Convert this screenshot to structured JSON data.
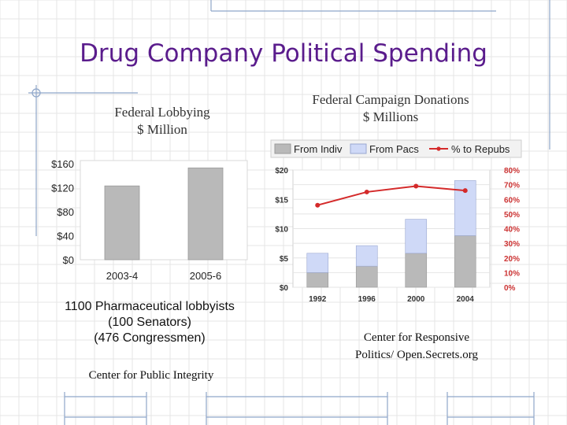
{
  "slide": {
    "title": "Drug Company Political Spending",
    "lobbying_heading": [
      "Federal Lobbying",
      "$ Million"
    ],
    "donations_heading": [
      "Federal Campaign Donations",
      "$ Millions"
    ],
    "lobbyists_note": [
      "1100 Pharmaceutical lobbyists",
      "(100 Senators)",
      "(476 Congressmen)"
    ],
    "source_left": "Center for Public Integrity",
    "source_right": [
      "Center for Responsive",
      "Politics/ Open.Secrets.org"
    ],
    "colors": {
      "title": "#5a1c8c",
      "bar_gray": "#b9b9b9",
      "bar_pacs": "#cfd9f7",
      "line_red": "#d42a2a",
      "axis_red": "#cc3333",
      "decor_blue": "#8fa6c9"
    }
  },
  "chart_data": [
    {
      "type": "bar",
      "title": "",
      "categories": [
        "2003-4",
        "2005-6"
      ],
      "values": [
        123,
        153
      ],
      "ylim": [
        0,
        160
      ],
      "yticks": [
        0,
        40,
        80,
        120,
        160
      ],
      "ytick_labels": [
        "$0",
        "$40",
        "$80",
        "$120",
        "$160"
      ],
      "grid": false
    },
    {
      "type": "bar",
      "stacked": true,
      "categories": [
        "1992",
        "1996",
        "2000",
        "2004"
      ],
      "series": [
        {
          "name": "From Indiv",
          "values": [
            2.5,
            3.6,
            5.8,
            8.8
          ]
        },
        {
          "name": "From Pacs",
          "values": [
            3.3,
            3.5,
            5.8,
            9.4
          ]
        }
      ],
      "line_series": {
        "name": "% to Repubs",
        "axis": "right",
        "values": [
          56,
          65,
          69,
          66
        ]
      },
      "ylim": [
        0,
        20
      ],
      "yticks": [
        0,
        5,
        10,
        15,
        20
      ],
      "ytick_labels": [
        "$0",
        "$5",
        "$10",
        "$15",
        "$20"
      ],
      "y2lim": [
        0,
        80
      ],
      "y2ticks": [
        0,
        10,
        20,
        30,
        40,
        50,
        60,
        70,
        80
      ],
      "y2tick_labels": [
        "0%",
        "10%",
        "20%",
        "30%",
        "40%",
        "50%",
        "60%",
        "70%",
        "80%"
      ],
      "legend_placement": "top",
      "grid": true
    }
  ]
}
